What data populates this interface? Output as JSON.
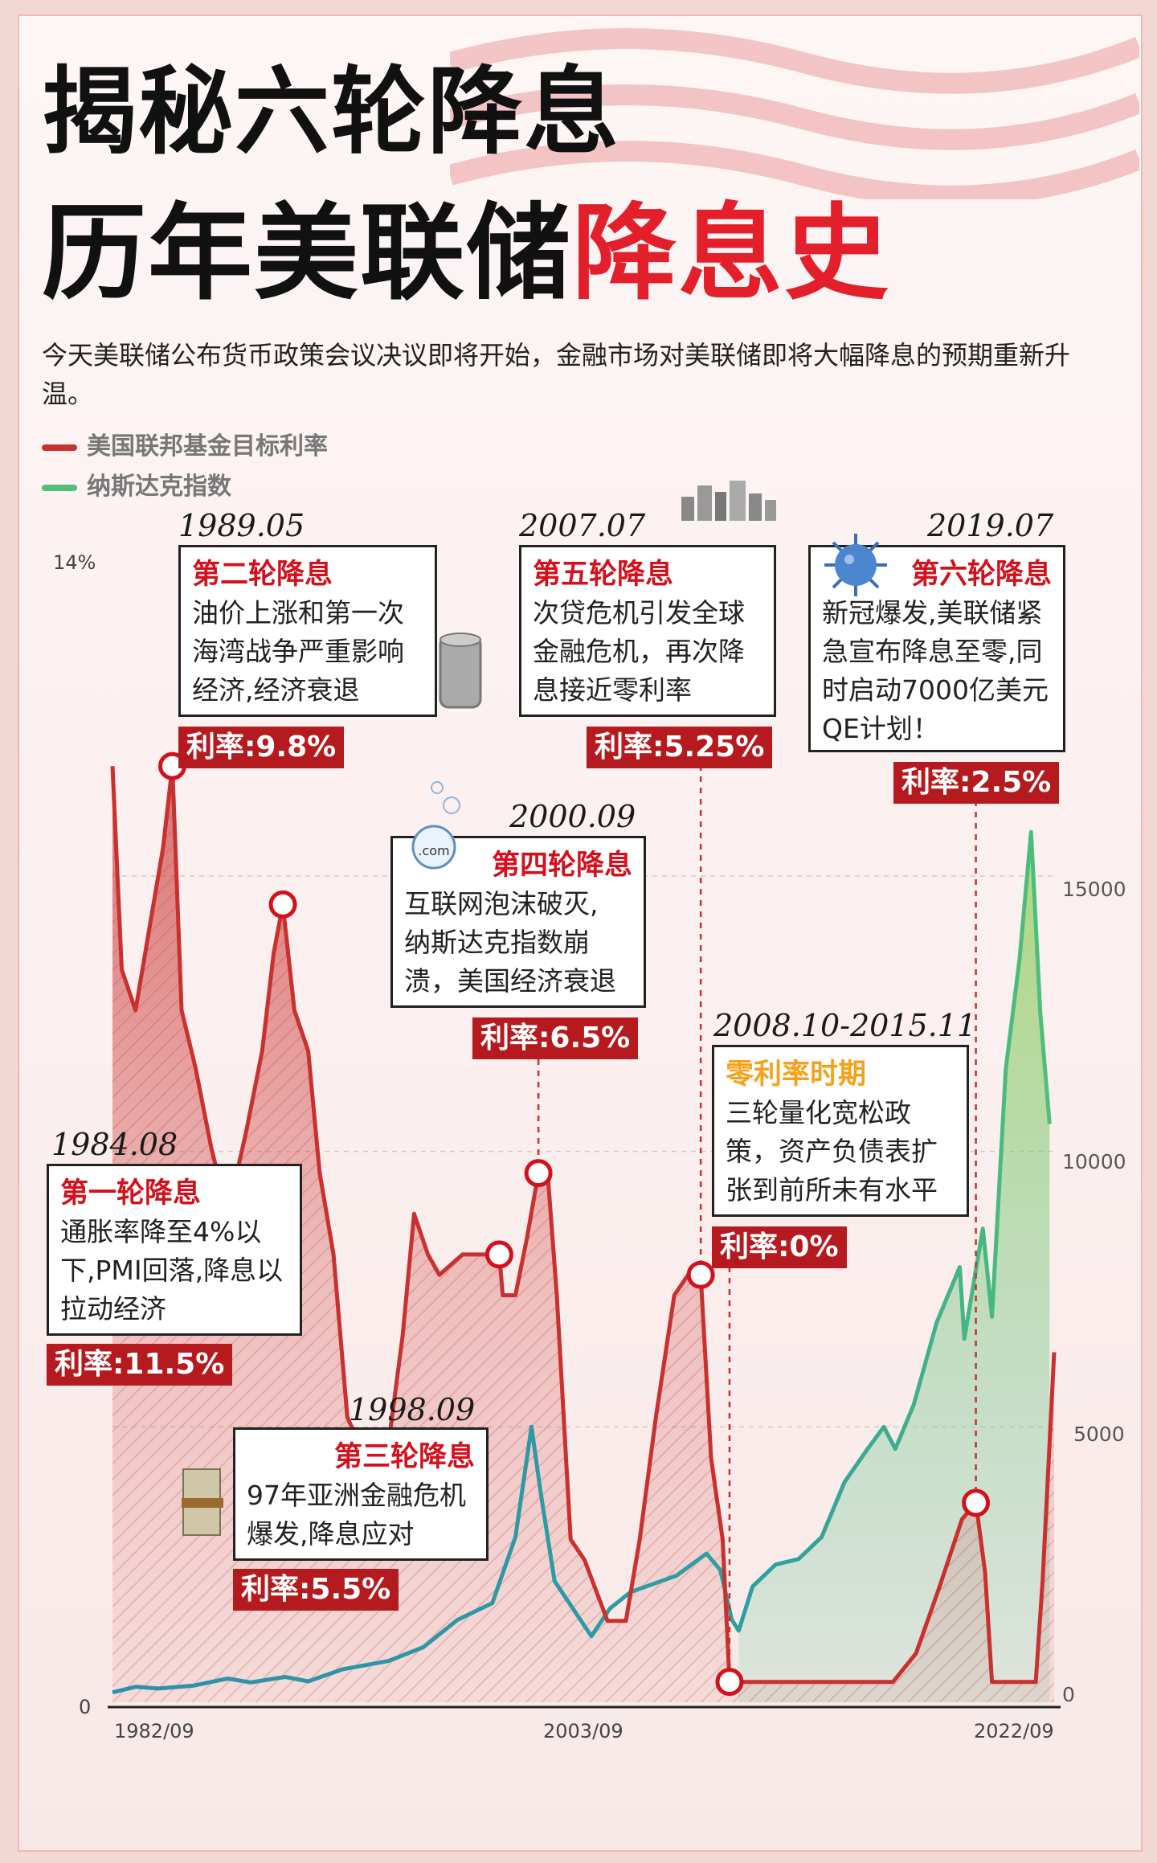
{
  "title": {
    "line1": "揭秘六轮降息",
    "line2_black": "历年美联储",
    "line2_red": "降息史"
  },
  "intro": "今天美联储公布货币政策会议决议即将开始，金融市场对美联储即将大幅降息的预期重新升温。",
  "legend": {
    "fed_rate": "美国联邦基金目标利率",
    "nasdaq": "纳斯达克指数"
  },
  "colors": {
    "fed_rate": "#c8312f",
    "nasdaq": "#2f8fa8",
    "nasdaq_late": "#4fbf7a",
    "rate_badge": "#b51a1e",
    "headline_red": "#d3111c",
    "headline_orange": "#f4a21a"
  },
  "annotations": [
    {
      "id": "r1",
      "date": "1984.08",
      "title": "第一轮降息",
      "lines": [
        "通胀率降至4%以",
        "下,PMI回落,降息以",
        "拉动经济"
      ],
      "rate": "利率:11.5%"
    },
    {
      "id": "r2",
      "date": "1989.05",
      "title": "第二轮降息",
      "lines": [
        "油价上涨和第一次",
        "海湾战争严重影响",
        "经济,经济衰退"
      ],
      "rate": "利率:9.8%"
    },
    {
      "id": "r3",
      "date": "1998.09",
      "title": "第三轮降息",
      "lines": [
        "97年亚洲金融危机",
        "爆发,降息应对"
      ],
      "rate": "利率:5.5%"
    },
    {
      "id": "r4",
      "date": "2000.09",
      "title": "第四轮降息",
      "lines": [
        "互联网泡沫破灭,",
        "纳斯达克指数崩",
        "溃，美国经济衰退"
      ],
      "rate": "利率:6.5%"
    },
    {
      "id": "r5",
      "date": "2007.07",
      "title": "第五轮降息",
      "lines": [
        "次贷危机引发全球",
        "金融危机，再次降",
        "息接近零利率"
      ],
      "rate": "利率:5.25%"
    },
    {
      "id": "zero",
      "date": "2008.10-2015.11",
      "title": "零利率时期",
      "lines": [
        "三轮量化宽松政",
        "策，资产负债表扩",
        "张到前所未有水平"
      ],
      "rate": "利率:0%"
    },
    {
      "id": "r6",
      "date": "2019.07",
      "title": "第六轮降息",
      "lines": [
        "新冠爆发,美联储紧",
        "急宣布降息至零,同",
        "时启动7000亿美元",
        "QE计划！"
      ],
      "rate": "利率:2.5%"
    }
  ],
  "chart_data": {
    "type": "area",
    "left_axis": {
      "ticks": [
        "14%",
        "0"
      ],
      "range": [
        0,
        14
      ]
    },
    "right_axis": {
      "ticks": [
        "15000",
        "10000",
        "5000",
        "0"
      ],
      "range": [
        0,
        21000
      ]
    },
    "x_ticks": [
      "1982/09",
      "2003/09",
      "2022/09"
    ],
    "x_range": [
      1982.0,
      2022.9
    ],
    "series": [
      {
        "key": "fed_rate",
        "points": [
          [
            1982.0,
            11.5
          ],
          [
            1982.4,
            9.0
          ],
          [
            1983.0,
            8.5
          ],
          [
            1983.6,
            9.5
          ],
          [
            1984.2,
            10.5
          ],
          [
            1984.6,
            11.5
          ],
          [
            1985.0,
            8.5
          ],
          [
            1985.6,
            7.8
          ],
          [
            1986.3,
            6.8
          ],
          [
            1987.0,
            6.0
          ],
          [
            1987.8,
            7.0
          ],
          [
            1988.5,
            8.0
          ],
          [
            1989.0,
            9.2
          ],
          [
            1989.4,
            9.8
          ],
          [
            1989.9,
            8.5
          ],
          [
            1990.5,
            8.0
          ],
          [
            1991.0,
            6.5
          ],
          [
            1991.6,
            5.5
          ],
          [
            1992.2,
            3.5
          ],
          [
            1993.0,
            3.0
          ],
          [
            1994.0,
            3.2
          ],
          [
            1994.6,
            4.5
          ],
          [
            1995.1,
            6.0
          ],
          [
            1995.7,
            5.5
          ],
          [
            1996.2,
            5.25
          ],
          [
            1997.2,
            5.5
          ],
          [
            1998.3,
            5.5
          ],
          [
            1998.8,
            5.5
          ],
          [
            1998.95,
            5.0
          ],
          [
            1999.5,
            5.0
          ],
          [
            2000.0,
            5.7
          ],
          [
            2000.5,
            6.5
          ],
          [
            2000.9,
            6.5
          ],
          [
            2001.3,
            5.0
          ],
          [
            2001.9,
            2.0
          ],
          [
            2002.5,
            1.75
          ],
          [
            2003.5,
            1.0
          ],
          [
            2004.3,
            1.0
          ],
          [
            2004.9,
            2.0
          ],
          [
            2005.6,
            3.5
          ],
          [
            2006.4,
            5.0
          ],
          [
            2007.0,
            5.25
          ],
          [
            2007.55,
            5.25
          ],
          [
            2008.0,
            3.0
          ],
          [
            2008.5,
            2.0
          ],
          [
            2008.8,
            0.25
          ],
          [
            2015.9,
            0.25
          ],
          [
            2016.9,
            0.6
          ],
          [
            2017.9,
            1.4
          ],
          [
            2018.9,
            2.25
          ],
          [
            2019.5,
            2.45
          ],
          [
            2019.9,
            1.6
          ],
          [
            2020.2,
            0.25
          ],
          [
            2022.1,
            0.25
          ],
          [
            2022.4,
            1.5
          ],
          [
            2022.9,
            4.3
          ]
        ]
      },
      {
        "key": "nasdaq",
        "points": [
          [
            1982.0,
            180
          ],
          [
            1983.0,
            280
          ],
          [
            1984.0,
            250
          ],
          [
            1985.5,
            300
          ],
          [
            1987.0,
            430
          ],
          [
            1988.0,
            360
          ],
          [
            1989.5,
            460
          ],
          [
            1990.5,
            380
          ],
          [
            1992.0,
            600
          ],
          [
            1994.0,
            750
          ],
          [
            1995.5,
            1000
          ],
          [
            1997.0,
            1500
          ],
          [
            1998.5,
            1800
          ],
          [
            1999.5,
            3000
          ],
          [
            2000.2,
            5000
          ],
          [
            2000.6,
            3800
          ],
          [
            2001.2,
            2200
          ],
          [
            2002.0,
            1700
          ],
          [
            2002.8,
            1200
          ],
          [
            2003.6,
            1700
          ],
          [
            2004.5,
            2000
          ],
          [
            2005.5,
            2150
          ],
          [
            2006.5,
            2300
          ],
          [
            2007.8,
            2700
          ],
          [
            2008.4,
            2400
          ],
          [
            2008.9,
            1500
          ],
          [
            2009.2,
            1300
          ],
          [
            2009.8,
            2100
          ],
          [
            2010.8,
            2500
          ],
          [
            2011.8,
            2600
          ],
          [
            2012.8,
            3000
          ],
          [
            2013.8,
            4000
          ],
          [
            2014.8,
            4600
          ],
          [
            2015.5,
            5000
          ],
          [
            2016.0,
            4600
          ],
          [
            2016.8,
            5400
          ],
          [
            2017.8,
            6900
          ],
          [
            2018.8,
            7900
          ],
          [
            2019.0,
            6600
          ],
          [
            2019.8,
            8600
          ],
          [
            2020.2,
            7000
          ],
          [
            2020.8,
            11500
          ],
          [
            2021.4,
            13500
          ],
          [
            2021.9,
            15800
          ],
          [
            2022.3,
            12500
          ],
          [
            2022.7,
            10500
          ]
        ]
      }
    ],
    "annotated_points": [
      {
        "id": "r1",
        "x": 1984.6,
        "y": 11.5
      },
      {
        "id": "r2",
        "x": 1989.4,
        "y": 9.8
      },
      {
        "id": "r3",
        "x": 1998.8,
        "y": 5.5
      },
      {
        "id": "r4",
        "x": 2000.5,
        "y": 6.5
      },
      {
        "id": "r5",
        "x": 2007.55,
        "y": 5.25
      },
      {
        "id": "zero",
        "x": 2008.8,
        "y": 0.25
      },
      {
        "id": "r6",
        "x": 2019.5,
        "y": 2.45
      }
    ]
  }
}
